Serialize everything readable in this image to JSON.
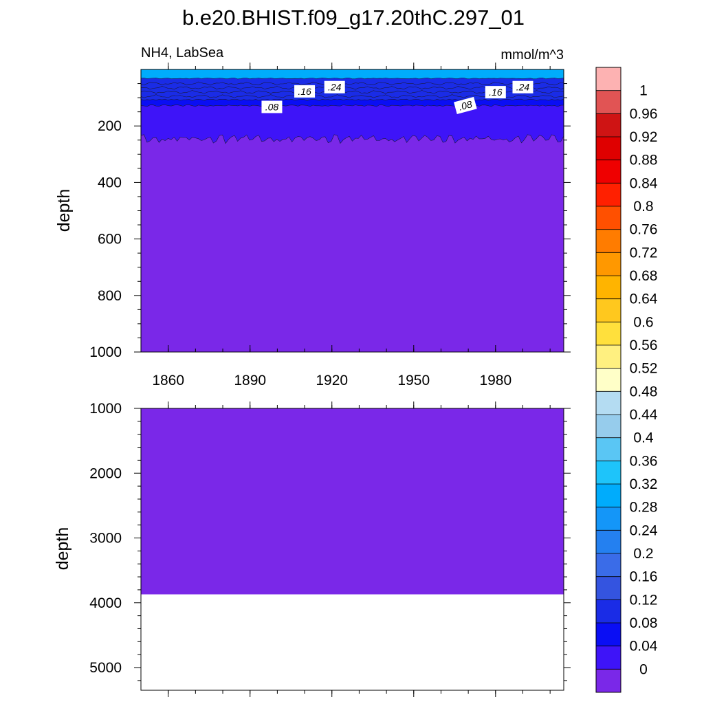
{
  "title": "b.e20.BHIST.f09_g17.20thC.297_01",
  "chart_data": [
    {
      "type": "contour",
      "panel": "upper",
      "left_label": "NH4, LabSea",
      "right_label": "mmol/m^3",
      "xlabel": "",
      "ylabel": "depth",
      "xlim": [
        1850,
        2005
      ],
      "ylim": [
        1000,
        0
      ],
      "x_ticks": [
        1860,
        1890,
        1920,
        1950,
        1980
      ],
      "x_tick_labels": [
        "1860",
        "1890",
        "1920",
        "1950",
        "1980"
      ],
      "y_ticks": [
        200,
        400,
        600,
        800,
        1000
      ],
      "y_tick_labels": [
        "200",
        "400",
        "600",
        "800",
        "1000"
      ],
      "contour_labels": [
        {
          "text": ".16",
          "x": 1910,
          "depth": 80
        },
        {
          "text": ".24",
          "x": 1921,
          "depth": 65
        },
        {
          "text": ".08",
          "x": 1898,
          "depth": 135
        },
        {
          "text": ".16",
          "x": 1980,
          "depth": 83
        },
        {
          "text": ".24",
          "x": 1990,
          "depth": 65
        },
        {
          "text": ".08",
          "x": 1969,
          "depth": 130
        }
      ],
      "layers": [
        {
          "from": 0.0,
          "to": 0.04,
          "depth_top": 1000,
          "depth_bottom": 200
        },
        {
          "from": 0.04,
          "to": 0.08,
          "depth_top": 120,
          "depth_bottom": 250
        },
        {
          "from": 0.08,
          "to": 0.12,
          "depth_top": 105,
          "depth_bottom": 125
        },
        {
          "from": 0.12,
          "to": 0.32,
          "depth_top": 30,
          "depth_bottom": 105
        },
        {
          "from": 0.32,
          "to": 0.36,
          "depth_top": 5,
          "depth_bottom": 30
        }
      ]
    },
    {
      "type": "contour",
      "panel": "lower",
      "ylabel": "depth",
      "xlim": [
        1850,
        2005
      ],
      "ylim": [
        5350,
        1000
      ],
      "y_ticks": [
        1000,
        2000,
        3000,
        4000,
        5000
      ],
      "y_tick_labels": [
        "1000",
        "2000",
        "3000",
        "4000",
        "5000"
      ],
      "fill_range": [
        0.0,
        0.04
      ],
      "ocean_bottom_depth": 3870
    }
  ],
  "colorbar": {
    "levels": [
      "1",
      "0.96",
      "0.92",
      "0.88",
      "0.84",
      "0.8",
      "0.76",
      "0.72",
      "0.68",
      "0.64",
      "0.6",
      "0.56",
      "0.52",
      "0.48",
      "0.44",
      "0.4",
      "0.36",
      "0.32",
      "0.28",
      "0.24",
      "0.2",
      "0.16",
      "0.12",
      "0.08",
      "0.04",
      "0"
    ],
    "colors": [
      "#fdb2b2",
      "#e15454",
      "#cf1414",
      "#df0000",
      "#ef0000",
      "#ff2000",
      "#ff5000",
      "#ff7c00",
      "#ff9800",
      "#ffb400",
      "#ffc81e",
      "#ffe03c",
      "#fff080",
      "#ffffc8",
      "#b4dcf2",
      "#96ccec",
      "#5ac6f4",
      "#1ec4fa",
      "#00acfc",
      "#1496f8",
      "#2480f0",
      "#3a6ce8",
      "#3454e0",
      "#1a2ce6",
      "#0a0ef4",
      "#3e14f8",
      "#7a28e8"
    ]
  }
}
